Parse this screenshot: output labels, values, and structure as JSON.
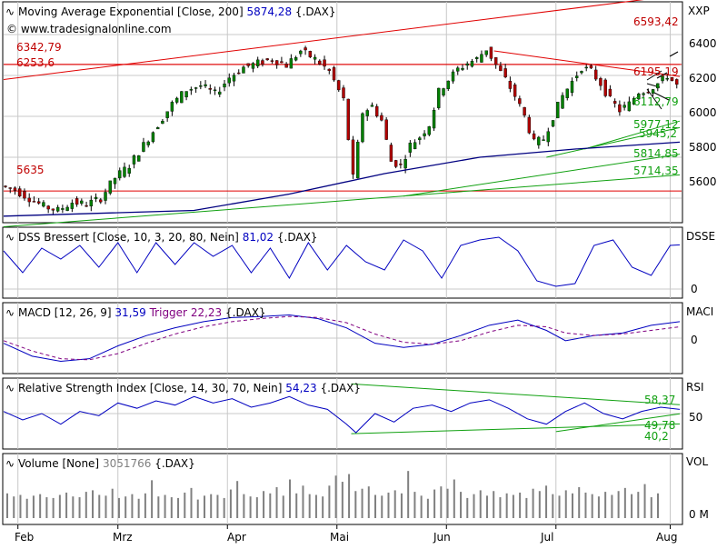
{
  "panels": {
    "price": {
      "title": "Moving Average Exponential [Close, 200]",
      "value": "5874,28",
      "symbol": "{.DAX}",
      "copyright": "© www.tradesignalonline.com",
      "axis_label": "XXP",
      "ticks": [
        "6400",
        "6200",
        "6000",
        "5800",
        "5600"
      ],
      "levels": [
        "6342,79",
        "6253,6",
        "5635",
        "6593,42",
        "6195,19",
        "6112,79",
        "5977,12",
        "5945,2",
        "5814,85",
        "5714,35"
      ]
    },
    "dss": {
      "title": "DSS Bressert [Close, 10, 3, 20, 80, Nein]",
      "value": "81,02",
      "symbol": "{.DAX}",
      "axis_label": "DSSE",
      "ticks": [
        "0"
      ]
    },
    "macd": {
      "title": "MACD [12, 26, 9]",
      "value": "31,59",
      "trigger_label": "Trigger",
      "trigger_value": "22,23",
      "symbol": "{.DAX}",
      "axis_label": "MACI",
      "ticks": [
        "0"
      ]
    },
    "rsi": {
      "title": "Relative Strength Index [Close, 14, 30, 70, Nein]",
      "value": "54,23",
      "symbol": "{.DAX}",
      "axis_label": "RSI",
      "ticks": [
        "50"
      ],
      "levels": [
        "58,37",
        "49,78",
        "40,2"
      ]
    },
    "volume": {
      "title": "Volume [None]",
      "value": "3051766",
      "symbol": "{.DAX}",
      "axis_label": "VOL",
      "ticks": [
        "0 M"
      ]
    }
  },
  "x_axis": [
    "Feb",
    "Mrz",
    "Apr",
    "Mai",
    "Jun",
    "Jul",
    "Aug"
  ],
  "colors": {
    "background": "#ffffff",
    "grid": "#c8c8c8",
    "candle_up": "#008000",
    "candle_down": "#b00000",
    "ema": "#000080",
    "resistance": "#e00000",
    "support": "#10a010",
    "indicator": "#0000c0",
    "trigger": "#800080",
    "volume": "#808080",
    "label_red": "#c00000",
    "label_green": "#10a010"
  },
  "chart_data": {
    "type": "candlestick",
    "y_range": [
      5480,
      6560
    ],
    "x_months": [
      "Feb",
      "Mrz",
      "Apr",
      "Mai",
      "Jun",
      "Jul",
      "Aug"
    ],
    "close_path": [
      [
        0,
        5660
      ],
      [
        3,
        5640
      ],
      [
        6,
        5600
      ],
      [
        9,
        5560
      ],
      [
        12,
        5540
      ],
      [
        15,
        5580
      ],
      [
        18,
        5570
      ],
      [
        21,
        5600
      ],
      [
        24,
        5700
      ],
      [
        27,
        5760
      ],
      [
        30,
        5860
      ],
      [
        33,
        5960
      ],
      [
        36,
        6060
      ],
      [
        39,
        6130
      ],
      [
        42,
        6150
      ],
      [
        45,
        6110
      ],
      [
        48,
        6190
      ],
      [
        51,
        6240
      ],
      [
        54,
        6260
      ],
      [
        57,
        6280
      ],
      [
        60,
        6250
      ],
      [
        63,
        6320
      ],
      [
        66,
        6280
      ],
      [
        69,
        6220
      ],
      [
        72,
        6080
      ],
      [
        74,
        5700
      ],
      [
        76,
        6020
      ],
      [
        78,
        6050
      ],
      [
        80,
        5980
      ],
      [
        82,
        5780
      ],
      [
        84,
        5760
      ],
      [
        86,
        5860
      ],
      [
        88,
        5900
      ],
      [
        90,
        5960
      ],
      [
        92,
        6120
      ],
      [
        94,
        6180
      ],
      [
        96,
        6230
      ],
      [
        98,
        6260
      ],
      [
        100,
        6280
      ],
      [
        102,
        6330
      ],
      [
        104,
        6250
      ],
      [
        106,
        6180
      ],
      [
        108,
        6100
      ],
      [
        110,
        6000
      ],
      [
        112,
        5870
      ],
      [
        114,
        5890
      ],
      [
        116,
        6000
      ],
      [
        118,
        6100
      ],
      [
        120,
        6170
      ],
      [
        122,
        6240
      ],
      [
        124,
        6220
      ],
      [
        126,
        6160
      ],
      [
        128,
        6080
      ],
      [
        130,
        6030
      ],
      [
        132,
        6060
      ],
      [
        134,
        6120
      ],
      [
        136,
        6130
      ],
      [
        138,
        6160
      ],
      [
        140,
        6200
      ],
      [
        142,
        6150
      ]
    ],
    "ema_200": [
      [
        0,
        5512
      ],
      [
        40,
        5540
      ],
      [
        60,
        5620
      ],
      [
        80,
        5720
      ],
      [
        100,
        5800
      ],
      [
        120,
        5840
      ],
      [
        142,
        5874
      ]
    ],
    "resistance_lines": [
      {
        "label": "6593,42",
        "from": [
          0,
          6180
        ],
        "to": [
          142,
          6593
        ]
      },
      {
        "label": "6253,6",
        "from": [
          0,
          6254
        ],
        "to": [
          142,
          6254
        ]
      },
      {
        "label": "6195,19",
        "from": [
          103,
          6320
        ],
        "to": [
          142,
          6195
        ]
      }
    ],
    "support_lines": [
      {
        "label": "5714,35",
        "from": [
          0,
          5460
        ],
        "to": [
          142,
          5714
        ]
      },
      {
        "label": "5814,85",
        "from": [
          84,
          5610
        ],
        "to": [
          142,
          5815
        ]
      },
      {
        "label": "5945,2",
        "from": [
          114,
          5800
        ],
        "to": [
          142,
          5945
        ]
      },
      {
        "label": "5977,12",
        "from": [
          122,
          5840
        ],
        "to": [
          142,
          5977
        ]
      }
    ],
    "horizontal_levels": [
      {
        "label": "5635",
        "value": 5635
      },
      {
        "label": "6253,6",
        "value": 6254
      }
    ],
    "dss_range": [
      0,
      100
    ],
    "dss": [
      [
        0,
        70
      ],
      [
        4,
        30
      ],
      [
        8,
        75
      ],
      [
        12,
        55
      ],
      [
        16,
        80
      ],
      [
        20,
        40
      ],
      [
        24,
        85
      ],
      [
        28,
        30
      ],
      [
        32,
        85
      ],
      [
        36,
        45
      ],
      [
        40,
        85
      ],
      [
        44,
        60
      ],
      [
        48,
        80
      ],
      [
        52,
        30
      ],
      [
        56,
        75
      ],
      [
        60,
        20
      ],
      [
        64,
        85
      ],
      [
        68,
        35
      ],
      [
        72,
        80
      ],
      [
        76,
        50
      ],
      [
        80,
        35
      ],
      [
        84,
        90
      ],
      [
        88,
        70
      ],
      [
        92,
        20
      ],
      [
        96,
        80
      ],
      [
        100,
        90
      ],
      [
        104,
        95
      ],
      [
        108,
        70
      ],
      [
        112,
        15
      ],
      [
        116,
        5
      ],
      [
        120,
        10
      ],
      [
        124,
        80
      ],
      [
        128,
        90
      ],
      [
        132,
        40
      ],
      [
        136,
        25
      ],
      [
        140,
        80
      ],
      [
        142,
        81
      ]
    ],
    "macd_range": [
      -60,
      60
    ],
    "macd": [
      [
        0,
        -10
      ],
      [
        6,
        -35
      ],
      [
        12,
        -45
      ],
      [
        18,
        -40
      ],
      [
        24,
        -15
      ],
      [
        30,
        5
      ],
      [
        36,
        20
      ],
      [
        42,
        32
      ],
      [
        48,
        40
      ],
      [
        54,
        42
      ],
      [
        60,
        45
      ],
      [
        66,
        38
      ],
      [
        72,
        20
      ],
      [
        78,
        -10
      ],
      [
        84,
        -18
      ],
      [
        90,
        -12
      ],
      [
        96,
        5
      ],
      [
        102,
        25
      ],
      [
        108,
        35
      ],
      [
        114,
        15
      ],
      [
        118,
        -5
      ],
      [
        124,
        5
      ],
      [
        130,
        10
      ],
      [
        136,
        25
      ],
      [
        142,
        32
      ]
    ],
    "trigger": [
      [
        0,
        -5
      ],
      [
        6,
        -25
      ],
      [
        12,
        -40
      ],
      [
        18,
        -42
      ],
      [
        24,
        -30
      ],
      [
        30,
        -10
      ],
      [
        36,
        8
      ],
      [
        42,
        22
      ],
      [
        48,
        32
      ],
      [
        54,
        38
      ],
      [
        60,
        42
      ],
      [
        66,
        40
      ],
      [
        72,
        30
      ],
      [
        78,
        8
      ],
      [
        84,
        -8
      ],
      [
        90,
        -12
      ],
      [
        96,
        -5
      ],
      [
        102,
        12
      ],
      [
        108,
        25
      ],
      [
        114,
        22
      ],
      [
        118,
        10
      ],
      [
        124,
        5
      ],
      [
        130,
        8
      ],
      [
        136,
        15
      ],
      [
        142,
        22
      ]
    ],
    "rsi_range": [
      20,
      80
    ],
    "rsi": [
      [
        0,
        52
      ],
      [
        4,
        44
      ],
      [
        8,
        50
      ],
      [
        12,
        40
      ],
      [
        16,
        52
      ],
      [
        20,
        48
      ],
      [
        24,
        60
      ],
      [
        28,
        55
      ],
      [
        32,
        62
      ],
      [
        36,
        58
      ],
      [
        40,
        66
      ],
      [
        44,
        60
      ],
      [
        48,
        64
      ],
      [
        52,
        56
      ],
      [
        56,
        60
      ],
      [
        60,
        66
      ],
      [
        64,
        58
      ],
      [
        68,
        54
      ],
      [
        72,
        40
      ],
      [
        74,
        32
      ],
      [
        78,
        50
      ],
      [
        82,
        42
      ],
      [
        86,
        55
      ],
      [
        90,
        58
      ],
      [
        94,
        52
      ],
      [
        98,
        60
      ],
      [
        102,
        63
      ],
      [
        106,
        55
      ],
      [
        110,
        45
      ],
      [
        114,
        40
      ],
      [
        118,
        52
      ],
      [
        122,
        60
      ],
      [
        126,
        50
      ],
      [
        130,
        45
      ],
      [
        134,
        52
      ],
      [
        138,
        56
      ],
      [
        142,
        54
      ]
    ],
    "volume_range_m": [
      0,
      8
    ],
    "volume_m": [
      3.2,
      2.8,
      3.0,
      2.5,
      2.9,
      3.1,
      2.7,
      2.6,
      3.0,
      3.3,
      2.8,
      2.7,
      3.4,
      3.6,
      3.0,
      2.9,
      3.8,
      2.6,
      2.8,
      3.1,
      2.5,
      3.2,
      4.9,
      2.8,
      3.0,
      2.7,
      2.6,
      3.3,
      3.9,
      2.4,
      2.9,
      3.1,
      3.0,
      2.6,
      3.7,
      4.8,
      3.1,
      2.8,
      2.7,
      3.5,
      3.2,
      4.0,
      2.9,
      5.0,
      3.2,
      4.2,
      3.1,
      3.0,
      2.8,
      4.2,
      5.5,
      4.7,
      5.7,
      3.5,
      3.8,
      4.1,
      3.0,
      2.9,
      3.3,
      3.6,
      3.2,
      6.1,
      3.4,
      2.9,
      2.5,
      3.7,
      4.1,
      3.8,
      5.0,
      3.4,
      2.6,
      3.1,
      3.6,
      2.9,
      3.5,
      2.7,
      3.2,
      3.0,
      3.3,
      2.6,
      3.8,
      3.5,
      4.2,
      3.1,
      2.9,
      3.6,
      3.2,
      4.0,
      3.3,
      3.1,
      2.8,
      3.4,
      3.0,
      3.5,
      3.9,
      3.1,
      3.4,
      4.4,
      2.7,
      3.2
    ]
  }
}
